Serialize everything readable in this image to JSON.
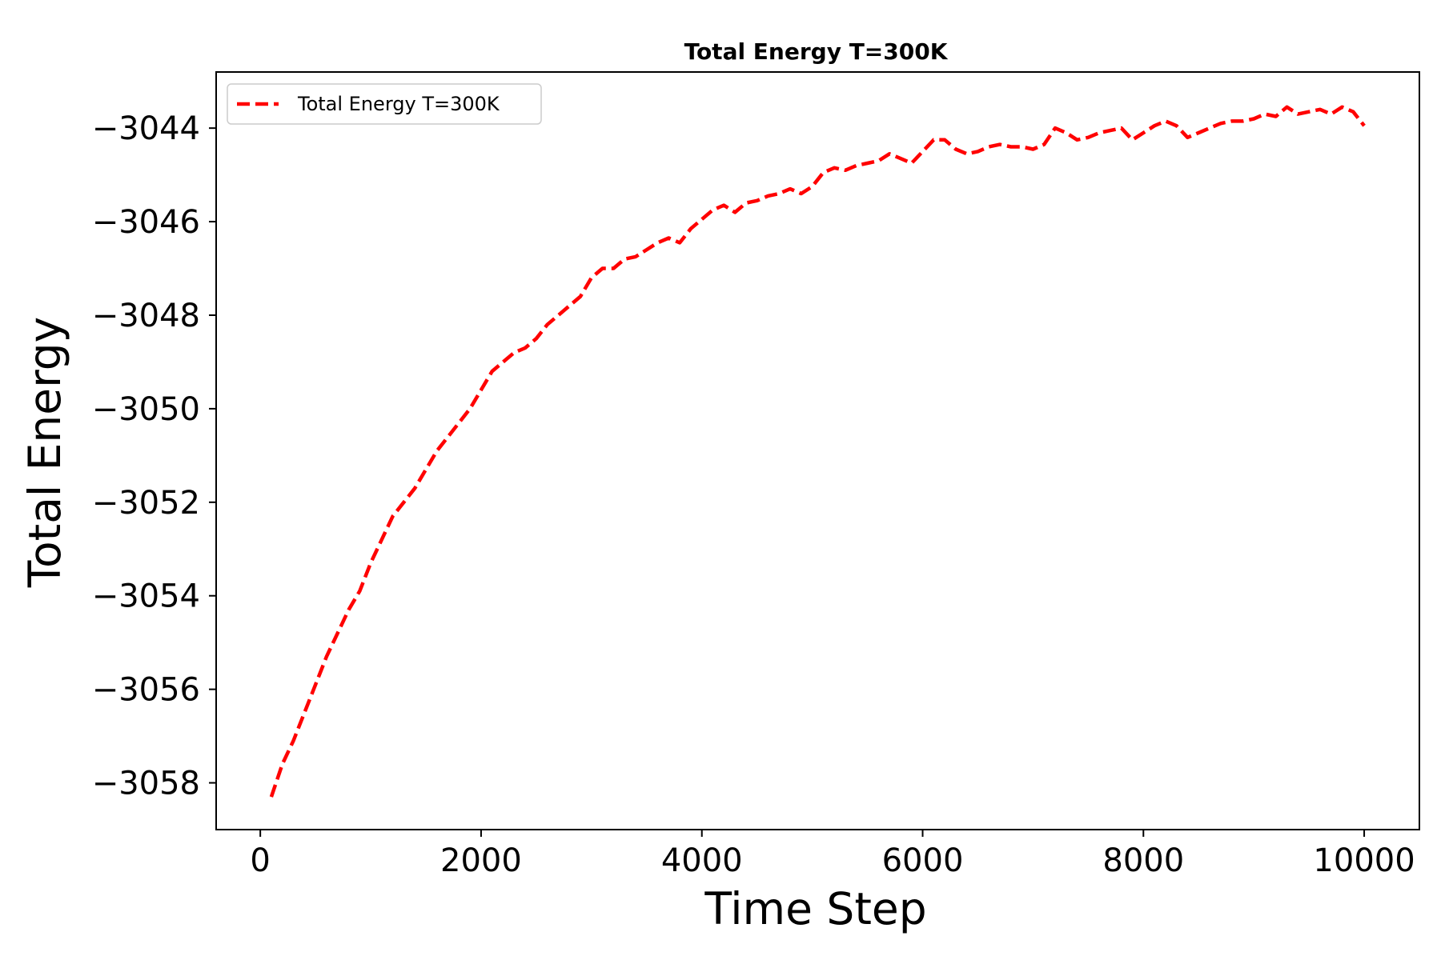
{
  "chart_data": {
    "type": "line",
    "title": "Total Energy T=300K",
    "xlabel": "Time Step",
    "ylabel": "Total Energy",
    "xlim": [
      -400,
      10500
    ],
    "ylim": [
      -3059,
      -3042.8
    ],
    "xticks": [
      0,
      2000,
      4000,
      6000,
      8000,
      10000
    ],
    "xtick_labels": [
      "0",
      "2000",
      "4000",
      "6000",
      "8000",
      "10000"
    ],
    "yticks": [
      -3058,
      -3056,
      -3054,
      -3052,
      -3050,
      -3048,
      -3046,
      -3044
    ],
    "ytick_labels": [
      "−3058",
      "−3056",
      "−3054",
      "−3052",
      "−3050",
      "−3048",
      "−3046",
      "−3044"
    ],
    "grid": false,
    "legend_position": "upper-left",
    "series": [
      {
        "name": "Total Energy T=300K",
        "color": "#ff0000",
        "style": "dashed",
        "x": [
          100,
          200,
          300,
          400,
          500,
          600,
          700,
          800,
          900,
          1000,
          1100,
          1200,
          1300,
          1400,
          1500,
          1600,
          1700,
          1800,
          1900,
          2000,
          2100,
          2200,
          2300,
          2400,
          2500,
          2600,
          2700,
          2800,
          2900,
          3000,
          3100,
          3200,
          3300,
          3400,
          3500,
          3600,
          3700,
          3800,
          3900,
          4000,
          4100,
          4200,
          4300,
          4400,
          4500,
          4600,
          4700,
          4800,
          4900,
          5000,
          5100,
          5200,
          5300,
          5400,
          5500,
          5600,
          5700,
          5800,
          5900,
          6000,
          6100,
          6200,
          6300,
          6400,
          6500,
          6600,
          6700,
          6800,
          6900,
          7000,
          7100,
          7200,
          7300,
          7400,
          7500,
          7600,
          7700,
          7800,
          7900,
          8000,
          8100,
          8200,
          8300,
          8400,
          8500,
          8600,
          8700,
          8800,
          8900,
          9000,
          9100,
          9200,
          9300,
          9400,
          9500,
          9600,
          9700,
          9800,
          9900,
          10000
        ],
        "y": [
          -3058.3,
          -3057.6,
          -3057.1,
          -3056.5,
          -3055.9,
          -3055.3,
          -3054.8,
          -3054.3,
          -3053.9,
          -3053.3,
          -3052.8,
          -3052.3,
          -3052.0,
          -3051.7,
          -3051.3,
          -3050.9,
          -3050.6,
          -3050.3,
          -3050.0,
          -3049.6,
          -3049.2,
          -3049.0,
          -3048.8,
          -3048.7,
          -3048.5,
          -3048.2,
          -3048.0,
          -3047.8,
          -3047.6,
          -3047.2,
          -3047.0,
          -3047.0,
          -3046.8,
          -3046.75,
          -3046.6,
          -3046.45,
          -3046.35,
          -3046.45,
          -3046.15,
          -3045.95,
          -3045.75,
          -3045.65,
          -3045.8,
          -3045.6,
          -3045.55,
          -3045.45,
          -3045.4,
          -3045.3,
          -3045.4,
          -3045.25,
          -3044.95,
          -3044.85,
          -3044.9,
          -3044.8,
          -3044.75,
          -3044.7,
          -3044.55,
          -3044.65,
          -3044.75,
          -3044.5,
          -3044.25,
          -3044.25,
          -3044.45,
          -3044.55,
          -3044.5,
          -3044.4,
          -3044.35,
          -3044.4,
          -3044.4,
          -3044.45,
          -3044.35,
          -3044.0,
          -3044.1,
          -3044.25,
          -3044.2,
          -3044.1,
          -3044.05,
          -3044.0,
          -3044.25,
          -3044.1,
          -3043.95,
          -3043.85,
          -3043.95,
          -3044.2,
          -3044.1,
          -3044.0,
          -3043.9,
          -3043.85,
          -3043.85,
          -3043.8,
          -3043.7,
          -3043.75,
          -3043.55,
          -3043.7,
          -3043.65,
          -3043.6,
          -3043.7,
          -3043.55,
          -3043.65,
          -3043.95
        ]
      }
    ]
  }
}
